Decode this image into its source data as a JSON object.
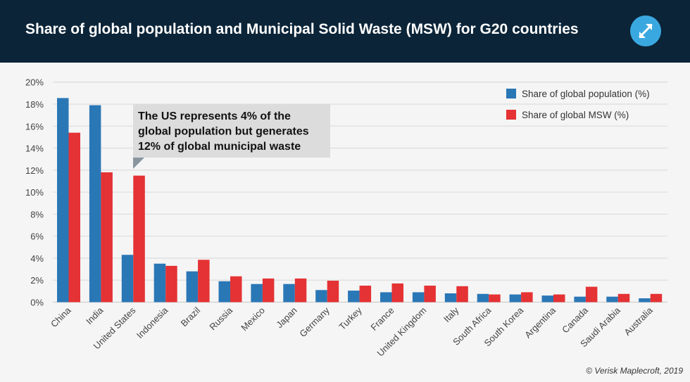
{
  "header": {
    "title": "Share of global population and Municipal Solid Waste (MSW) for G20 countries",
    "expand_icon": "expand-arrows-icon"
  },
  "colors": {
    "header_bg": "#0b2438",
    "population": "#2a77b6",
    "msw": "#e53234",
    "expand_button": "#3aa8e0"
  },
  "chart_data": {
    "type": "bar",
    "title": "Share of global population and Municipal Solid Waste (MSW) for G20 countries",
    "xlabel": "",
    "ylabel": "",
    "ylim": [
      0,
      20
    ],
    "yticks": [
      "0%",
      "2%",
      "4%",
      "6%",
      "8%",
      "10%",
      "12%",
      "14%",
      "16%",
      "18%",
      "20%"
    ],
    "grid": true,
    "legend_position": "top-right",
    "categories": [
      "China",
      "India",
      "United States",
      "Indonesia",
      "Brazil",
      "Russia",
      "Mexico",
      "Japan",
      "Germany",
      "Turkey",
      "France",
      "United Kingdom",
      "Italy",
      "South Africa",
      "South Korea",
      "Argentina",
      "Canada",
      "Saudi Arabia",
      "Australia"
    ],
    "series": [
      {
        "name": "Share of global population (%)",
        "values": [
          18.55,
          17.9,
          4.3,
          3.5,
          2.8,
          1.9,
          1.65,
          1.65,
          1.1,
          1.05,
          0.9,
          0.9,
          0.8,
          0.75,
          0.7,
          0.6,
          0.5,
          0.5,
          0.35
        ]
      },
      {
        "name": "Share of global MSW (%)",
        "values": [
          15.4,
          11.8,
          11.5,
          3.3,
          3.85,
          2.35,
          2.15,
          2.15,
          1.95,
          1.5,
          1.7,
          1.5,
          1.45,
          0.7,
          0.9,
          0.7,
          1.4,
          0.75,
          0.75
        ]
      }
    ],
    "annotation": {
      "text_lines": [
        "The US represents 4% of the",
        "global population but generates",
        "12% of global municipal waste"
      ],
      "target": "United States"
    }
  },
  "credit": "© Verisk Maplecroft, 2019"
}
